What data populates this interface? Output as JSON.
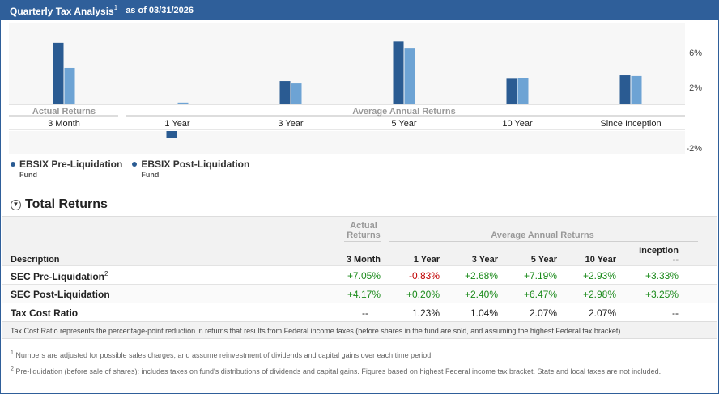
{
  "header": {
    "title": "Quarterly Tax Analysis",
    "title_sup": "1",
    "as_of": "as of 03/31/2026"
  },
  "chart_data": {
    "type": "bar",
    "categories": [
      "3 Month",
      "1 Year",
      "3 Year",
      "5 Year",
      "10 Year",
      "Since Inception"
    ],
    "group_labels": {
      "actual": "Actual Returns",
      "average": "Average Annual Returns"
    },
    "series": [
      {
        "name": "EBSIX Pre-Liquidation Fund",
        "values": [
          7.05,
          -0.83,
          2.68,
          7.19,
          2.93,
          3.33
        ],
        "color": "#2a5b92"
      },
      {
        "name": "EBSIX Post-Liquidation Fund",
        "values": [
          4.17,
          0.2,
          2.4,
          6.47,
          2.98,
          3.25
        ],
        "color": "#6da3d4"
      }
    ],
    "yticks": [
      "6%",
      "2%",
      "-2%"
    ],
    "ylim": [
      -3,
      8
    ],
    "legend_position": "bottom-left"
  },
  "legend": [
    {
      "label": "EBSIX Pre-Liquidation",
      "sub": "Fund",
      "color": "#2a5b92"
    },
    {
      "label": "EBSIX Post-Liquidation",
      "sub": "Fund",
      "color": "#2a5b92"
    }
  ],
  "total_returns": {
    "title": "Total Returns",
    "headers": {
      "description": "Description",
      "actual_group": "Actual Returns",
      "average_group": "Average Annual Returns",
      "cols": [
        "3 Month",
        "1 Year",
        "3 Year",
        "5 Year",
        "10 Year"
      ],
      "inception": "Inception",
      "inception_sub": "--"
    },
    "rows": [
      {
        "label": "SEC Pre-Liquidation",
        "sup": "2",
        "values": [
          "+7.05%",
          "-0.83%",
          "+2.68%",
          "+7.19%",
          "+2.93%",
          "+3.33%"
        ]
      },
      {
        "label": "SEC Post-Liquidation",
        "sup": "",
        "values": [
          "+4.17%",
          "+0.20%",
          "+2.40%",
          "+6.47%",
          "+2.98%",
          "+3.25%"
        ]
      },
      {
        "label": "Tax Cost Ratio",
        "sup": "",
        "values": [
          "--",
          "1.23%",
          "1.04%",
          "2.07%",
          "2.07%",
          "--"
        ]
      }
    ],
    "note": "Tax Cost Ratio represents the percentage-point reduction in returns that results from Federal income taxes (before shares in the fund are sold, and assuming the highest Federal tax bracket)."
  },
  "footnotes": [
    {
      "num": "1",
      "text": "Numbers are adjusted for possible sales charges, and assume reinvestment of dividends and capital gains over each time period."
    },
    {
      "num": "2",
      "text": "Pre-liquidation (before sale of shares): includes taxes on fund's distributions of dividends and capital gains. Figures based on highest Federal income tax bracket. State and local taxes are not included."
    }
  ]
}
